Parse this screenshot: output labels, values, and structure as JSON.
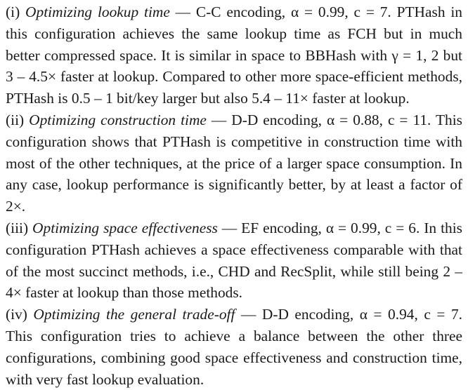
{
  "paragraphs": [
    {
      "label": "(i)",
      "title": "Optimizing lookup time",
      "dash": " — ",
      "encoding": "C-C encoding, ",
      "params": "α = 0.99, c = 7.",
      "body": " PTHash in this configuration achieves the same lookup time as FCH but in much better compressed space. It is similar in space to BBHash with γ = 1, 2 but 3 – 4.5× faster at lookup. Compared to other more space-efficient methods, PTHash is 0.5 – 1 bit/key larger but also 5.4 – 11× faster at lookup."
    },
    {
      "label": "(ii)",
      "title": "Optimizing construction time",
      "dash": " — ",
      "encoding": "D-D encoding, ",
      "params": "α = 0.88, c = 11.",
      "body": " This configuration shows that PTHash is competitive in construc­tion time with most of the other techniques, at the price of a larger space consumption. In any case, lookup performance is significantly better, by at least a factor of 2×."
    },
    {
      "label": "(iii)",
      "title": "Optimizing space effectiveness",
      "dash": " — ",
      "encoding": "EF encoding, ",
      "params": "α = 0.99, c = 6.",
      "body": " In this configuration PTHash achieves a space effectiveness compa­rable with that of the most succinct methods, i.e., CHD and RecSplit, while still being 2 – 4× faster at lookup than those methods."
    },
    {
      "label": "(iv)",
      "title": "Optimizing the general trade-off",
      "dash": " — ",
      "encoding": "D-D encoding, ",
      "params": "α = 0.94,",
      "body": " c = 7. This configuration tries to achieve a balance between the other three configurations, combining good space effectiveness and construction time, with very fast lookup evaluation."
    }
  ]
}
